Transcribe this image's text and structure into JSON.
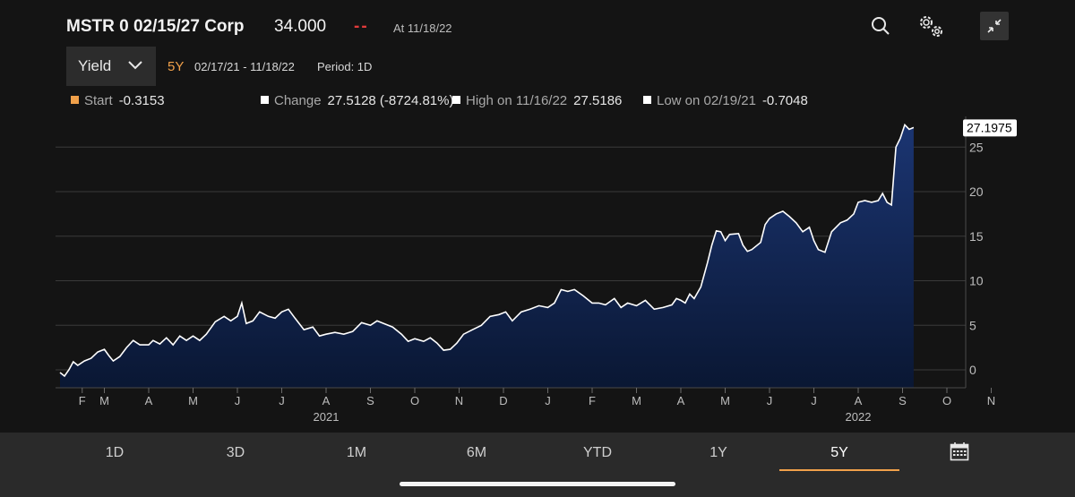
{
  "header": {
    "title": "MSTR 0 02/15/27 Corp",
    "price": "34.000",
    "change": "--",
    "asof": "At 11/18/22"
  },
  "controls": {
    "field_label": "Yield",
    "period_code": "5Y",
    "date_range": "02/17/21 - 11/18/22",
    "period": "Period: 1D"
  },
  "stats": {
    "start_label": "Start",
    "start_value": "-0.3153",
    "change_label": "Change",
    "change_value": "27.5128 (-8724.81%)",
    "high_label": "High on 11/16/22",
    "high_value": "27.5186",
    "low_label": "Low on 02/19/21",
    "low_value": "-0.7048"
  },
  "tabs": [
    "1D",
    "3D",
    "1M",
    "6M",
    "YTD",
    "1Y",
    "5Y"
  ],
  "active_tab": "5Y",
  "icons": {
    "search": "search-icon",
    "settings": "gear-icon",
    "collapse": "collapse-icon",
    "dropdown": "chevron-down-icon",
    "calendar": "calendar-icon"
  },
  "colors": {
    "background": "#141414",
    "line": "#ffffff",
    "area_top": "#1b3572",
    "area_bottom": "#0a1733",
    "accent": "#f0a04a",
    "change_negative": "#e23b3b"
  },
  "chart_data": {
    "type": "area",
    "title": "",
    "xlabel": "",
    "ylabel": "",
    "ylim": [
      -2,
      28
    ],
    "y_ticks": [
      0,
      5,
      10,
      15,
      20,
      25
    ],
    "grid": true,
    "last_value": "27.1975",
    "x_month_ticks": [
      {
        "label": "F",
        "t": 0.5
      },
      {
        "label": "M",
        "t": 1.0
      },
      {
        "label": "A",
        "t": 2.0
      },
      {
        "label": "M",
        "t": 3.0
      },
      {
        "label": "J",
        "t": 4.0
      },
      {
        "label": "J",
        "t": 5.0
      },
      {
        "label": "A",
        "t": 6.0
      },
      {
        "label": "S",
        "t": 7.0
      },
      {
        "label": "O",
        "t": 8.0
      },
      {
        "label": "N",
        "t": 9.0
      },
      {
        "label": "D",
        "t": 10.0
      },
      {
        "label": "J",
        "t": 11.0
      },
      {
        "label": "F",
        "t": 12.0
      },
      {
        "label": "M",
        "t": 13.0
      },
      {
        "label": "A",
        "t": 14.0
      },
      {
        "label": "M",
        "t": 15.0
      },
      {
        "label": "J",
        "t": 16.0
      },
      {
        "label": "J",
        "t": 17.0
      },
      {
        "label": "A",
        "t": 18.0
      },
      {
        "label": "S",
        "t": 19.0
      },
      {
        "label": "O",
        "t": 20.0
      },
      {
        "label": "N",
        "t": 21.0
      }
    ],
    "x_year_labels": [
      {
        "label": "2021",
        "t": 6.0
      },
      {
        "label": "2022",
        "t": 18.0
      }
    ],
    "series": [
      {
        "values": [
          [
            0.0,
            -0.3
          ],
          [
            0.05,
            -0.5
          ],
          [
            0.1,
            -0.7
          ],
          [
            0.2,
            0.0
          ],
          [
            0.3,
            0.9
          ],
          [
            0.4,
            0.5
          ],
          [
            0.55,
            1.0
          ],
          [
            0.7,
            1.3
          ],
          [
            0.85,
            2.0
          ],
          [
            1.0,
            2.3
          ],
          [
            1.1,
            1.6
          ],
          [
            1.2,
            1.0
          ],
          [
            1.35,
            1.5
          ],
          [
            1.5,
            2.5
          ],
          [
            1.65,
            3.3
          ],
          [
            1.8,
            2.8
          ],
          [
            2.0,
            2.8
          ],
          [
            2.1,
            3.3
          ],
          [
            2.25,
            2.9
          ],
          [
            2.4,
            3.6
          ],
          [
            2.55,
            2.8
          ],
          [
            2.7,
            3.8
          ],
          [
            2.85,
            3.3
          ],
          [
            3.0,
            3.8
          ],
          [
            3.15,
            3.3
          ],
          [
            3.3,
            4.0
          ],
          [
            3.5,
            5.4
          ],
          [
            3.7,
            6.0
          ],
          [
            3.85,
            5.5
          ],
          [
            4.0,
            6.0
          ],
          [
            4.1,
            7.5
          ],
          [
            4.2,
            5.2
          ],
          [
            4.35,
            5.5
          ],
          [
            4.5,
            6.5
          ],
          [
            4.7,
            6.0
          ],
          [
            4.85,
            5.8
          ],
          [
            5.0,
            6.5
          ],
          [
            5.15,
            6.8
          ],
          [
            5.3,
            5.8
          ],
          [
            5.5,
            4.5
          ],
          [
            5.7,
            4.8
          ],
          [
            5.85,
            3.8
          ],
          [
            6.0,
            4.0
          ],
          [
            6.2,
            4.2
          ],
          [
            6.4,
            4.0
          ],
          [
            6.6,
            4.3
          ],
          [
            6.8,
            5.3
          ],
          [
            7.0,
            5.0
          ],
          [
            7.15,
            5.5
          ],
          [
            7.3,
            5.2
          ],
          [
            7.5,
            4.8
          ],
          [
            7.7,
            4.0
          ],
          [
            7.85,
            3.2
          ],
          [
            8.0,
            3.5
          ],
          [
            8.2,
            3.2
          ],
          [
            8.35,
            3.6
          ],
          [
            8.5,
            3.0
          ],
          [
            8.65,
            2.2
          ],
          [
            8.8,
            2.3
          ],
          [
            8.95,
            3.0
          ],
          [
            9.1,
            4.0
          ],
          [
            9.3,
            4.5
          ],
          [
            9.5,
            5.0
          ],
          [
            9.7,
            6.0
          ],
          [
            9.9,
            6.2
          ],
          [
            10.05,
            6.5
          ],
          [
            10.2,
            5.5
          ],
          [
            10.4,
            6.5
          ],
          [
            10.6,
            6.8
          ],
          [
            10.8,
            7.2
          ],
          [
            11.0,
            7.0
          ],
          [
            11.15,
            7.5
          ],
          [
            11.3,
            9.0
          ],
          [
            11.45,
            8.8
          ],
          [
            11.6,
            9.0
          ],
          [
            11.8,
            8.3
          ],
          [
            12.0,
            7.5
          ],
          [
            12.15,
            7.5
          ],
          [
            12.3,
            7.3
          ],
          [
            12.5,
            8.0
          ],
          [
            12.65,
            7.0
          ],
          [
            12.8,
            7.5
          ],
          [
            13.0,
            7.2
          ],
          [
            13.2,
            7.8
          ],
          [
            13.4,
            6.8
          ],
          [
            13.6,
            7.0
          ],
          [
            13.8,
            7.3
          ],
          [
            13.9,
            8.0
          ],
          [
            14.0,
            7.8
          ],
          [
            14.1,
            7.5
          ],
          [
            14.2,
            8.5
          ],
          [
            14.3,
            8.0
          ],
          [
            14.45,
            9.3
          ],
          [
            14.6,
            12.0
          ],
          [
            14.7,
            14.0
          ],
          [
            14.8,
            15.6
          ],
          [
            14.9,
            15.5
          ],
          [
            15.0,
            14.5
          ],
          [
            15.1,
            15.2
          ],
          [
            15.3,
            15.3
          ],
          [
            15.4,
            14.0
          ],
          [
            15.5,
            13.3
          ],
          [
            15.6,
            13.5
          ],
          [
            15.8,
            14.3
          ],
          [
            15.9,
            16.3
          ],
          [
            16.0,
            17.0
          ],
          [
            16.15,
            17.5
          ],
          [
            16.3,
            17.8
          ],
          [
            16.45,
            17.2
          ],
          [
            16.6,
            16.5
          ],
          [
            16.75,
            15.5
          ],
          [
            16.9,
            16.0
          ],
          [
            17.0,
            14.5
          ],
          [
            17.1,
            13.5
          ],
          [
            17.25,
            13.2
          ],
          [
            17.4,
            15.5
          ],
          [
            17.6,
            16.5
          ],
          [
            17.75,
            16.8
          ],
          [
            17.9,
            17.5
          ],
          [
            18.0,
            18.8
          ],
          [
            18.15,
            19.0
          ],
          [
            18.3,
            18.8
          ],
          [
            18.45,
            19.0
          ],
          [
            18.55,
            19.8
          ],
          [
            18.65,
            18.8
          ],
          [
            18.75,
            18.5
          ],
          [
            18.85,
            25.0
          ],
          [
            18.95,
            26.0
          ],
          [
            19.05,
            27.5
          ],
          [
            19.15,
            27.0
          ],
          [
            19.25,
            27.2
          ]
        ]
      }
    ]
  }
}
